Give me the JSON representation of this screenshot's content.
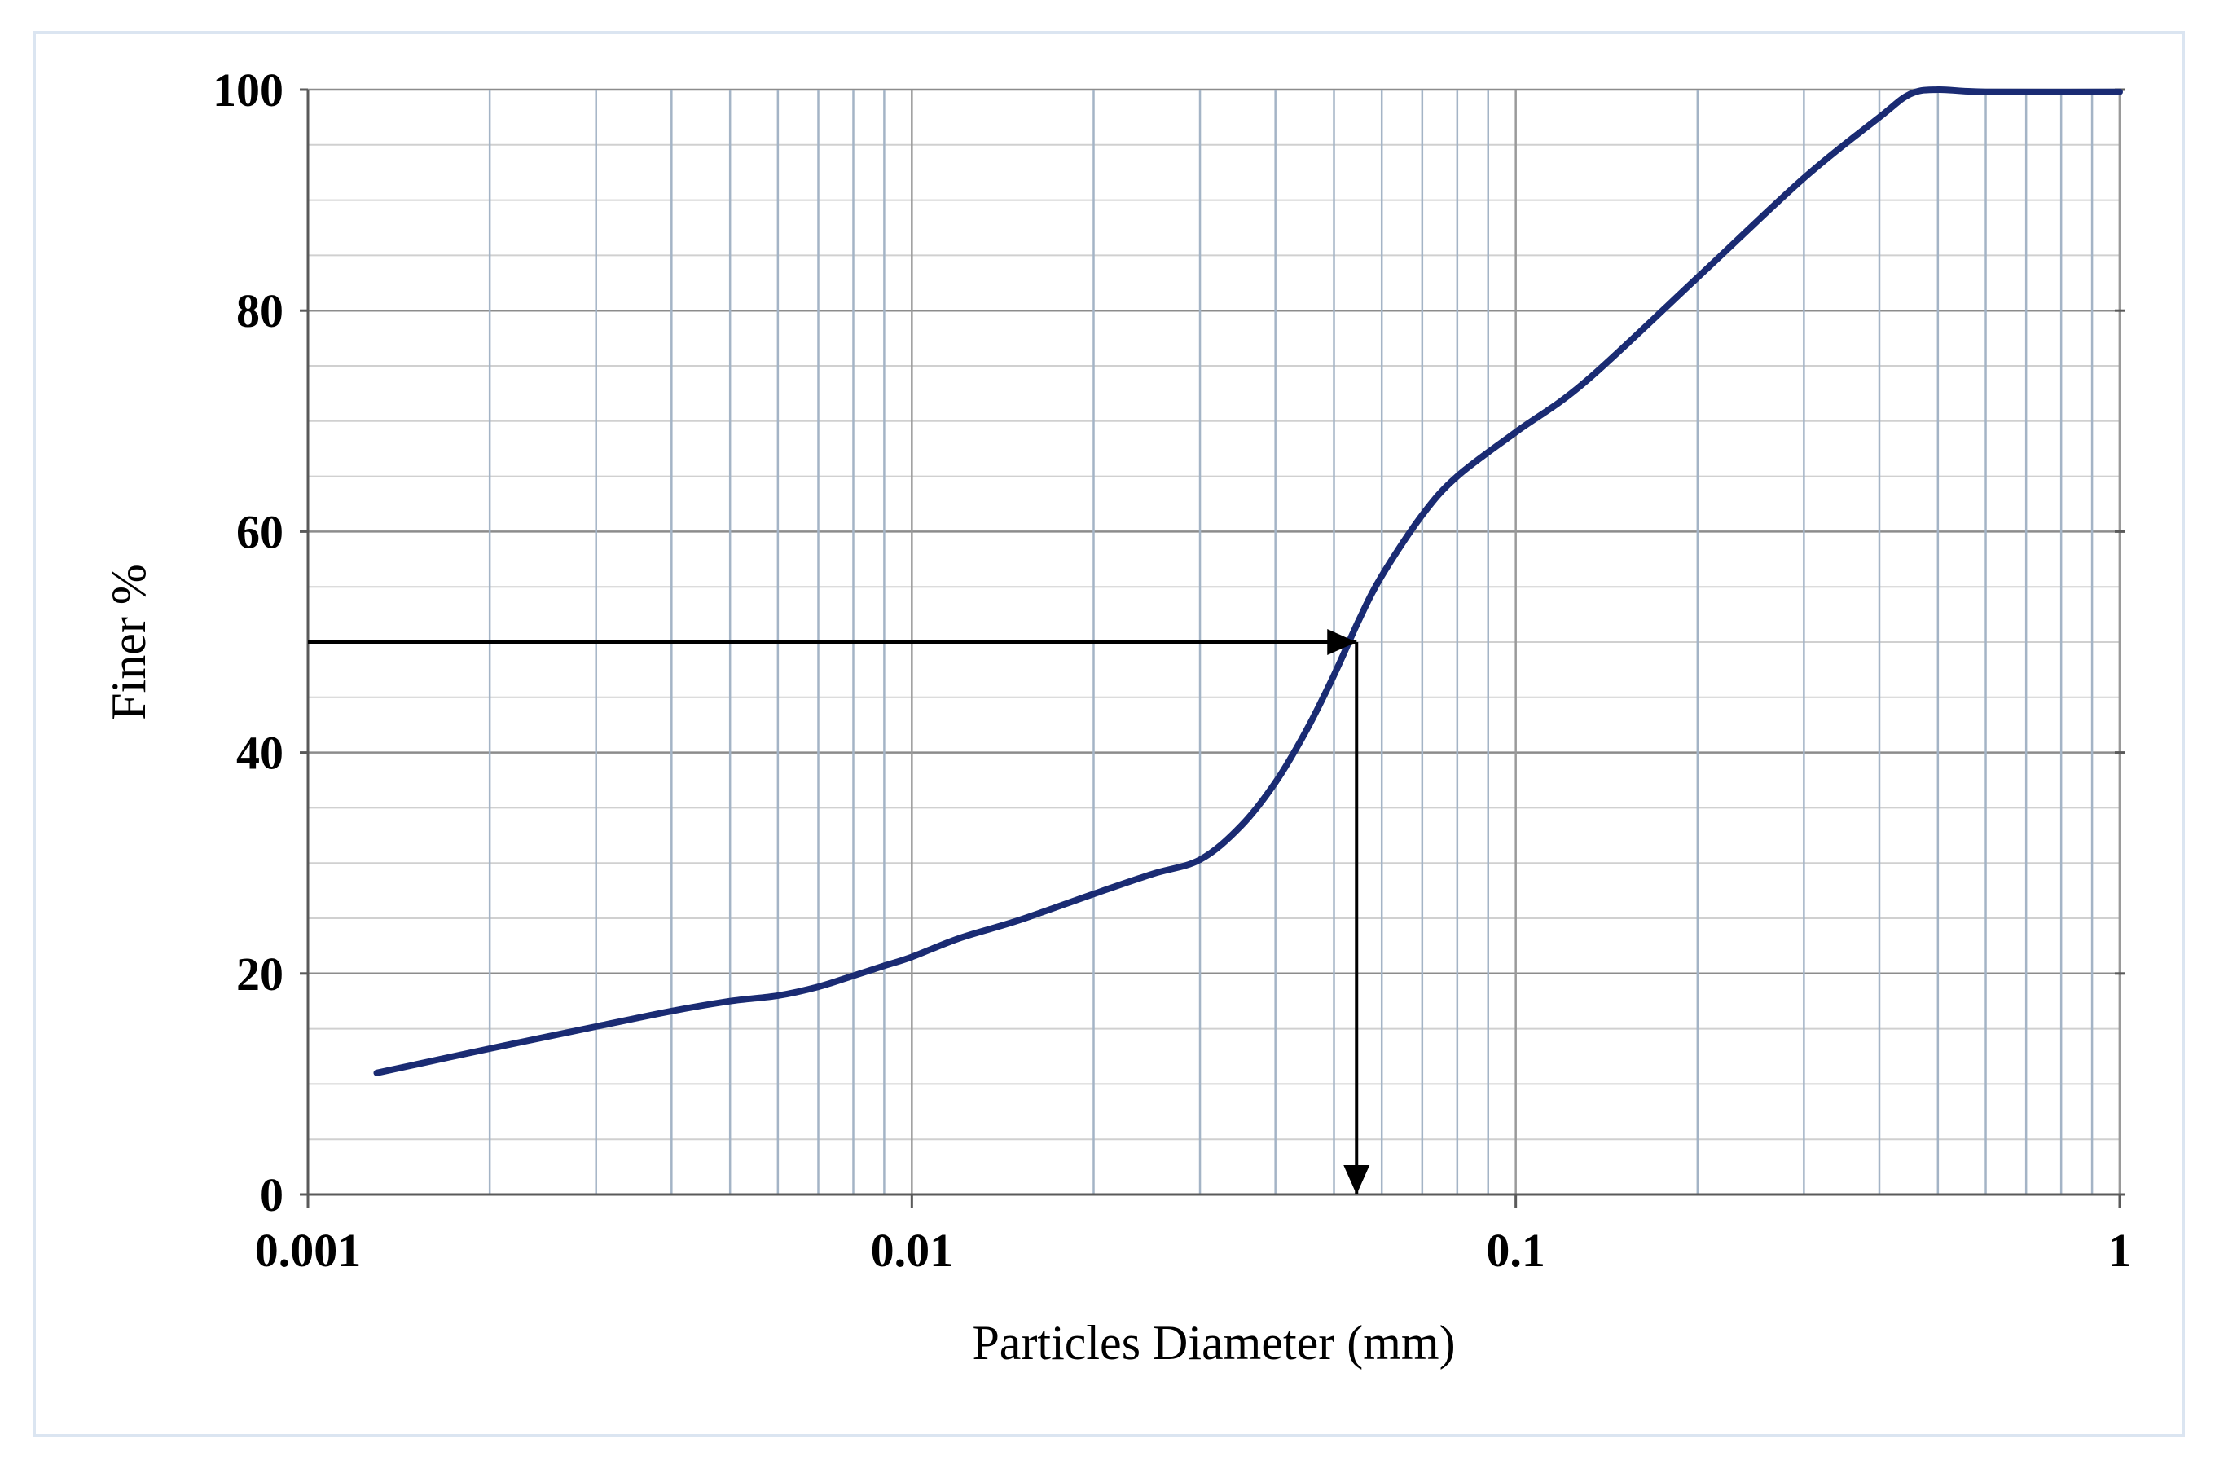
{
  "chart_data": {
    "type": "line",
    "title": "",
    "xlabel": "Particles Diameter (mm)",
    "ylabel": "Finer %",
    "x_scale": "log",
    "xlim": [
      0.001,
      1
    ],
    "ylim": [
      0,
      100
    ],
    "x_ticks": [
      {
        "value": 0.001,
        "label": "0.001"
      },
      {
        "value": 0.01,
        "label": "0.01"
      },
      {
        "value": 0.1,
        "label": "0.1"
      },
      {
        "value": 1,
        "label": "1"
      }
    ],
    "y_ticks": [
      {
        "value": 0,
        "label": "0"
      },
      {
        "value": 20,
        "label": "20"
      },
      {
        "value": 40,
        "label": "40"
      },
      {
        "value": 60,
        "label": "60"
      },
      {
        "value": 80,
        "label": "80"
      },
      {
        "value": 100,
        "label": "100"
      }
    ],
    "grid": true,
    "legend": "none",
    "line_color": "#1a2b73",
    "series": [
      {
        "x": [
          0.0013,
          0.002,
          0.003,
          0.004,
          0.005,
          0.006,
          0.007,
          0.008,
          0.009,
          0.01,
          0.012,
          0.015,
          0.02,
          0.025,
          0.03,
          0.035,
          0.04,
          0.045,
          0.05,
          0.055,
          0.06,
          0.07,
          0.08,
          0.1,
          0.13,
          0.2,
          0.3,
          0.4,
          0.45,
          0.5,
          0.6,
          1.0
        ],
        "y": [
          11,
          13.2,
          15.2,
          16.6,
          17.5,
          18.0,
          18.8,
          19.8,
          20.7,
          21.5,
          23.2,
          24.8,
          27.2,
          29.0,
          30.3,
          33.3,
          37.3,
          42.0,
          47.0,
          52.0,
          56.0,
          61.5,
          65.0,
          69.0,
          73.5,
          83.0,
          92.0,
          97.5,
          99.6,
          100,
          99.8,
          99.8
        ]
      }
    ],
    "annotations": [
      {
        "type": "arrow",
        "from": {
          "x": 0.001,
          "y": 50
        },
        "to": {
          "x": 0.0545,
          "y": 50
        }
      },
      {
        "type": "arrow",
        "from": {
          "x": 0.0545,
          "y": 50
        },
        "to": {
          "x": 0.0545,
          "y": 0
        }
      }
    ]
  }
}
